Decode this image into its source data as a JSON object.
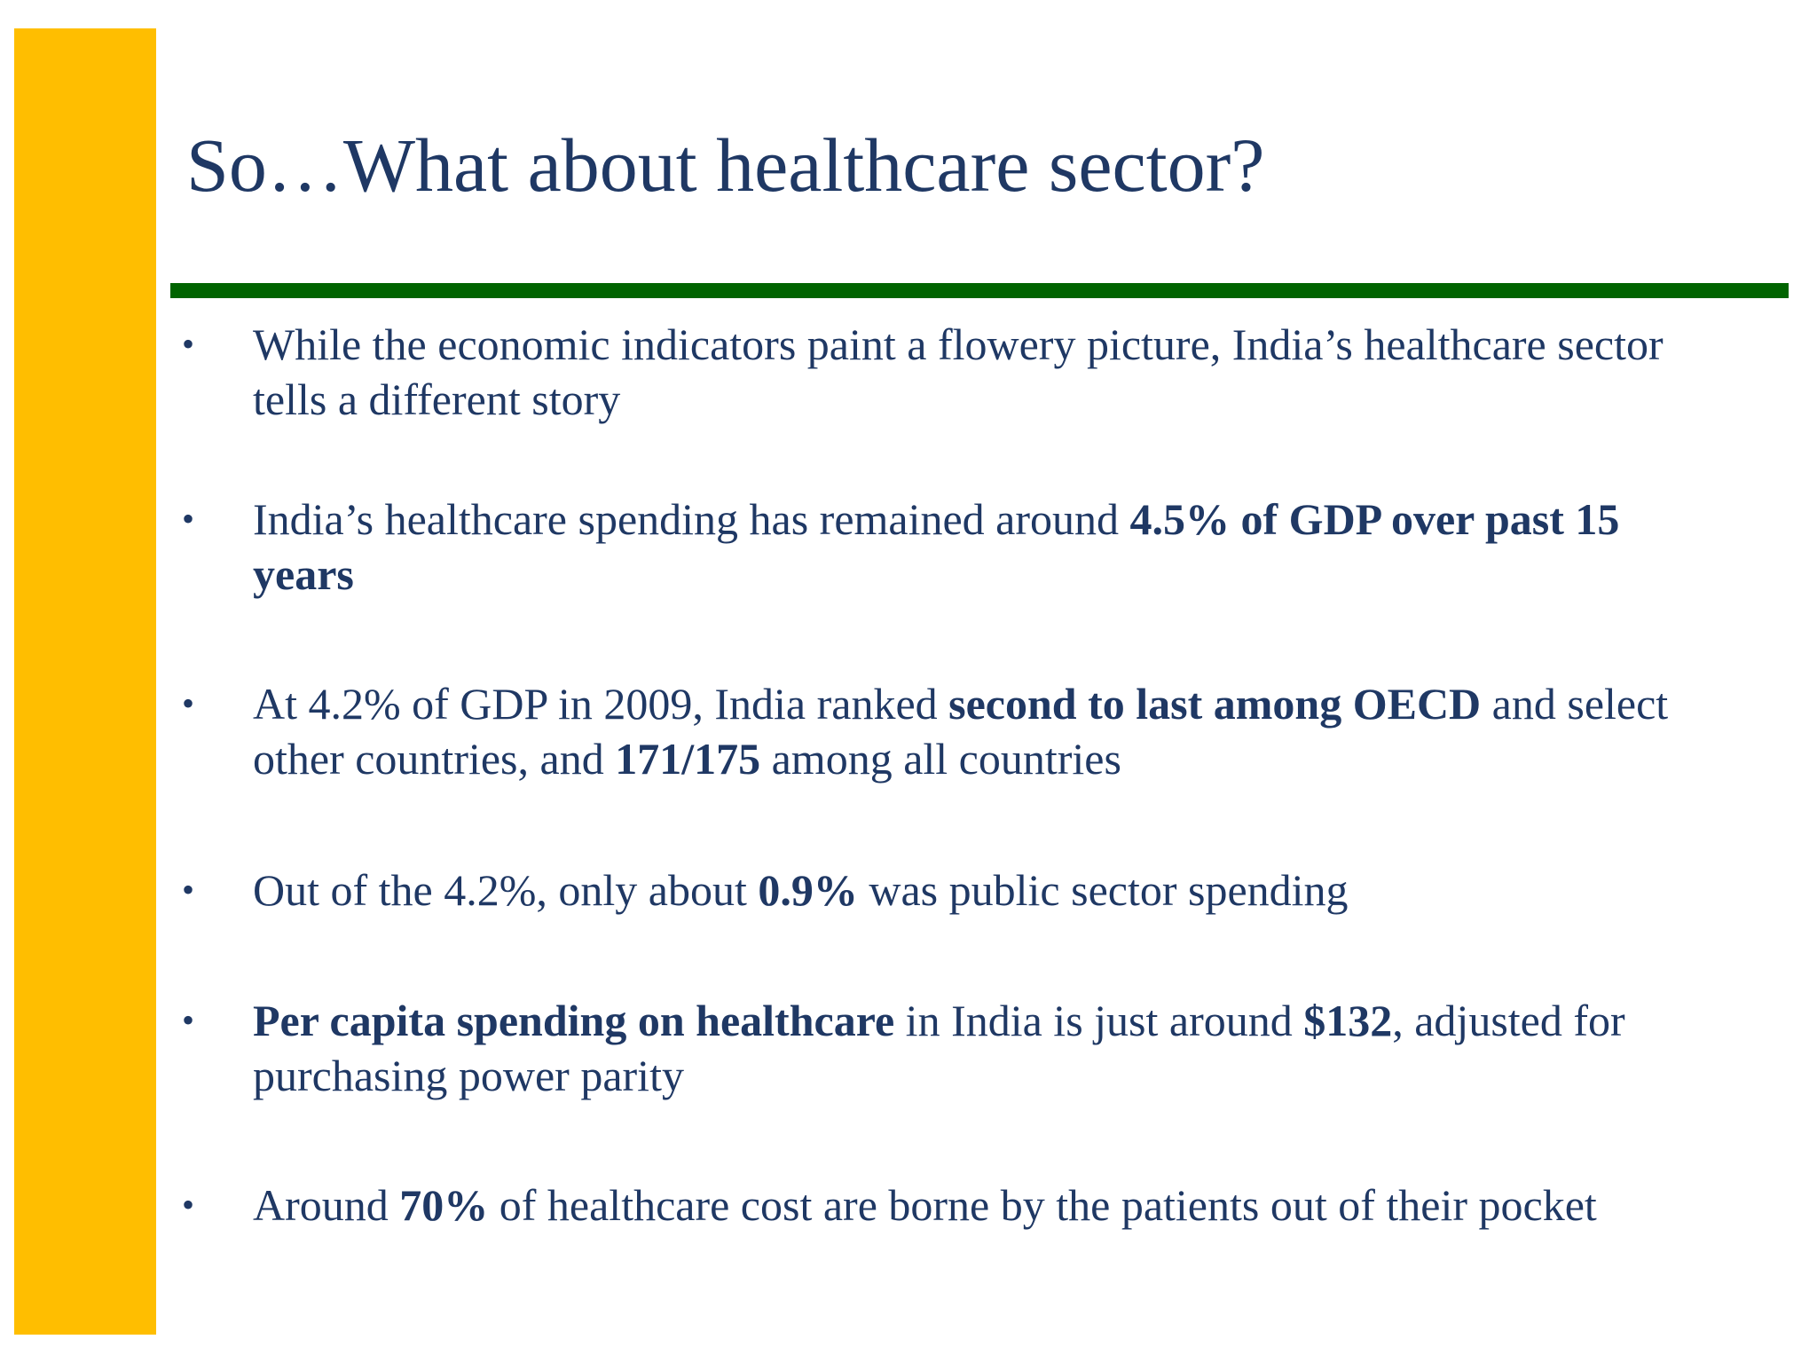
{
  "slide": {
    "title": "So…What about healthcare sector?",
    "colors": {
      "accent_bar": "#ffbe00",
      "title_rule": "#006400",
      "text": "#1f3864",
      "background": "#ffffff"
    },
    "bullet_glyph": "•",
    "bullets": [
      {
        "segments": [
          {
            "text": "While the economic indicators paint a flowery picture, India’s healthcare sector",
            "bold": false
          },
          {
            "text": "tells a different story",
            "bold": false
          }
        ],
        "line1": "While the economic indicators paint a flowery picture, India’s healthcare sector",
        "line2": "tells a different story"
      },
      {
        "p1": "India’s healthcare spending has remained around ",
        "b1": "4.5% of GDP over past 15",
        "b2": "years"
      },
      {
        "p1": "At 4.2% of GDP in 2009, India ranked ",
        "b1": "second to last among OECD",
        "p2": " and select",
        "p3": "other countries, and ",
        "b2": "171/175",
        "p4": " among all countries"
      },
      {
        "p1": "Out of the 4.2%, only about ",
        "b1": "0.9%",
        "p2": " was public sector spending"
      },
      {
        "b1": "Per capita spending on healthcare",
        "p1": " in India is just around ",
        "b2": "$132",
        "p2": ", adjusted for",
        "p3": "purchasing power parity"
      },
      {
        "p1": "Around ",
        "b1": "70%",
        "p2": " of healthcare cost are borne by the patients out of their pocket"
      }
    ]
  }
}
